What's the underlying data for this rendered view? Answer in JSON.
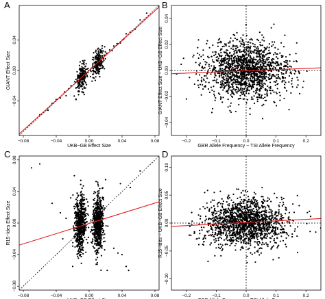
{
  "chart_data": [
    {
      "panel": "A",
      "type": "scatter",
      "xlabel": "UKB−GB Effect Size",
      "ylabel": "GIANT Effect Size",
      "xlim": [
        -0.085,
        0.085
      ],
      "ylim": [
        -0.085,
        0.085
      ],
      "xticks": [
        -0.08,
        -0.04,
        0.0,
        0.04,
        0.08
      ],
      "xtick_labels": [
        "−0.08",
        "−0.04",
        "0.00",
        "0.04",
        "0.08"
      ],
      "yticks": [
        -0.04,
        0.0,
        0.04
      ],
      "ytick_labels": [
        "−0.04",
        "0.00",
        "0.04"
      ],
      "reference_line": {
        "style": "dotted",
        "x": [
          -0.085,
          0.085
        ],
        "y": [
          -0.085,
          0.085
        ]
      },
      "fit_line": {
        "color": "#e41a1c",
        "x": [
          -0.085,
          0.085
        ],
        "y": [
          -0.083,
          0.083
        ]
      },
      "series": [
        {
          "values": [
            {
              "cluster": "negative",
              "x_center": -0.009,
              "y_center": -0.009,
              "x_spread": 0.0035,
              "y_spread": 0.008,
              "n": 230
            },
            {
              "cluster": "positive",
              "x_center": 0.011,
              "y_center": 0.011,
              "x_spread": 0.004,
              "y_spread": 0.008,
              "n": 210
            },
            {
              "cluster": "tail",
              "points": [
                [
                  -0.06,
                  -0.058
                ],
                [
                  -0.05,
                  -0.052
                ],
                [
                  -0.045,
                  -0.043
                ],
                [
                  -0.04,
                  -0.038
                ],
                [
                  -0.035,
                  -0.036
                ],
                [
                  -0.03,
                  -0.028
                ],
                [
                  -0.028,
                  -0.033
                ],
                [
                  -0.025,
                  -0.024
                ],
                [
                  -0.022,
                  -0.02
                ],
                [
                  0.025,
                  0.027
                ],
                [
                  0.028,
                  0.026
                ],
                [
                  0.03,
                  0.032
                ],
                [
                  0.034,
                  0.035
                ],
                [
                  0.038,
                  0.036
                ],
                [
                  0.042,
                  0.041
                ],
                [
                  0.045,
                  0.048
                ],
                [
                  0.05,
                  0.05
                ],
                [
                  0.056,
                  0.054
                ],
                [
                  0.062,
                  0.066
                ],
                [
                  0.07,
                  0.075
                ]
              ]
            }
          ]
        }
      ]
    },
    {
      "panel": "B",
      "type": "scatter",
      "xlabel": "GBR Allele Frequency − TSI Allele Frequency",
      "ylabel": "GIANT Effect Size − UKB−GB Effect Size",
      "xlim": [
        -0.25,
        0.25
      ],
      "ylim": [
        -0.05,
        0.05
      ],
      "xticks": [
        -0.2,
        -0.1,
        0.0,
        0.1,
        0.2
      ],
      "xtick_labels": [
        "−0.2",
        "−0.1",
        "0.0",
        "0.1",
        "0.2"
      ],
      "yticks": [
        -0.04,
        -0.02,
        0.0,
        0.02,
        0.04
      ],
      "ytick_labels": [
        "−0.04",
        "−0.02",
        "0.00",
        "0.02",
        "0.04"
      ],
      "reference_lines": [
        {
          "axis": "x",
          "value": 0,
          "style": "dotted"
        },
        {
          "axis": "y",
          "value": 0,
          "style": "dotted"
        }
      ],
      "fit_line": {
        "color": "#e41a1c",
        "x": [
          -0.25,
          0.25
        ],
        "y": [
          -0.0025,
          0.002
        ]
      },
      "series": [
        {
          "values": [
            {
              "x_center": 0.0,
              "y_center": 0.0,
              "x_spread": 0.07,
              "y_spread": 0.011,
              "n": 1600
            }
          ]
        }
      ]
    },
    {
      "panel": "C",
      "type": "scatter",
      "xlabel": "UKB−GB Effect Size",
      "ylabel": "R15−ldes Effect Size",
      "xlim": [
        -0.085,
        0.085
      ],
      "ylim": [
        -0.085,
        0.085
      ],
      "xticks": [
        -0.08,
        -0.04,
        0.0,
        0.04,
        0.08
      ],
      "xtick_labels": [
        "−0.08",
        "−0.04",
        "0.00",
        "0.04",
        "0.08"
      ],
      "yticks": [
        -0.08,
        -0.04,
        0.0,
        0.04,
        0.08
      ],
      "ytick_labels": [
        "−0.08",
        "−0.04",
        "0.00",
        "0.04",
        "0.08"
      ],
      "reference_line": {
        "style": "dotted",
        "x": [
          -0.085,
          0.085
        ],
        "y": [
          -0.085,
          0.085
        ]
      },
      "fit_line": {
        "color": "#e41a1c",
        "x": [
          -0.085,
          0.085
        ],
        "y": [
          -0.028,
          0.027
        ]
      },
      "series": [
        {
          "values": [
            {
              "cluster": "negative",
              "x_center": -0.011,
              "y_center": 0.0,
              "x_spread": 0.0035,
              "y_spread": 0.018,
              "n": 620
            },
            {
              "cluster": "positive",
              "x_center": 0.011,
              "y_center": 0.0,
              "x_spread": 0.0035,
              "y_spread": 0.018,
              "n": 620
            },
            {
              "cluster": "outliers",
              "points": [
                [
                  -0.06,
                  0.075
                ],
                [
                  -0.07,
                  0.07
                ],
                [
                  -0.045,
                  0.025
                ],
                [
                  -0.035,
                  0.013
                ],
                [
                  -0.032,
                  -0.02
                ],
                [
                  -0.028,
                  0.006
                ],
                [
                  0.03,
                  -0.032
                ],
                [
                  0.035,
                  -0.038
                ],
                [
                  0.04,
                  -0.04
                ],
                [
                  0.045,
                  -0.055
                ],
                [
                  0.048,
                  -0.06
                ],
                [
                  0.038,
                  0.05
                ],
                [
                  0.05,
                  0.045
                ],
                [
                  0.062,
                  0.066
                ],
                [
                  -0.02,
                  -0.055
                ],
                [
                  -0.018,
                  0.06
                ],
                [
                  0.02,
                  0.055
                ],
                [
                  0.022,
                  -0.06
                ]
              ]
            }
          ]
        }
      ]
    },
    {
      "panel": "D",
      "type": "scatter",
      "xlabel": "GBR Allele Frequency − TSI Allele Frequency",
      "ylabel": "R15−ldes − UKB−GB Effect Size",
      "xlim": [
        -0.25,
        0.25
      ],
      "ylim": [
        -0.12,
        0.12
      ],
      "xticks": [
        -0.2,
        -0.1,
        0.0,
        0.1,
        0.2
      ],
      "xtick_labels": [
        "−0.2",
        "−0.1",
        "0.0",
        "0.1",
        "0.2"
      ],
      "yticks": [
        -0.1,
        -0.05,
        0.0,
        0.05,
        0.1
      ],
      "ytick_labels": [
        "−0.10",
        "−0.05",
        "0.00",
        "0.05",
        "0.10"
      ],
      "reference_lines": [
        {
          "axis": "x",
          "value": 0,
          "style": "dotted"
        },
        {
          "axis": "y",
          "value": 0,
          "style": "dotted"
        }
      ],
      "fit_line": {
        "color": "#e41a1c",
        "x": [
          -0.25,
          0.25
        ],
        "y": [
          -0.006,
          0.008
        ]
      },
      "series": [
        {
          "values": [
            {
              "x_center": 0.0,
              "y_center": 0.0,
              "x_spread": 0.07,
              "y_spread": 0.022,
              "n": 1600
            }
          ]
        }
      ]
    }
  ]
}
